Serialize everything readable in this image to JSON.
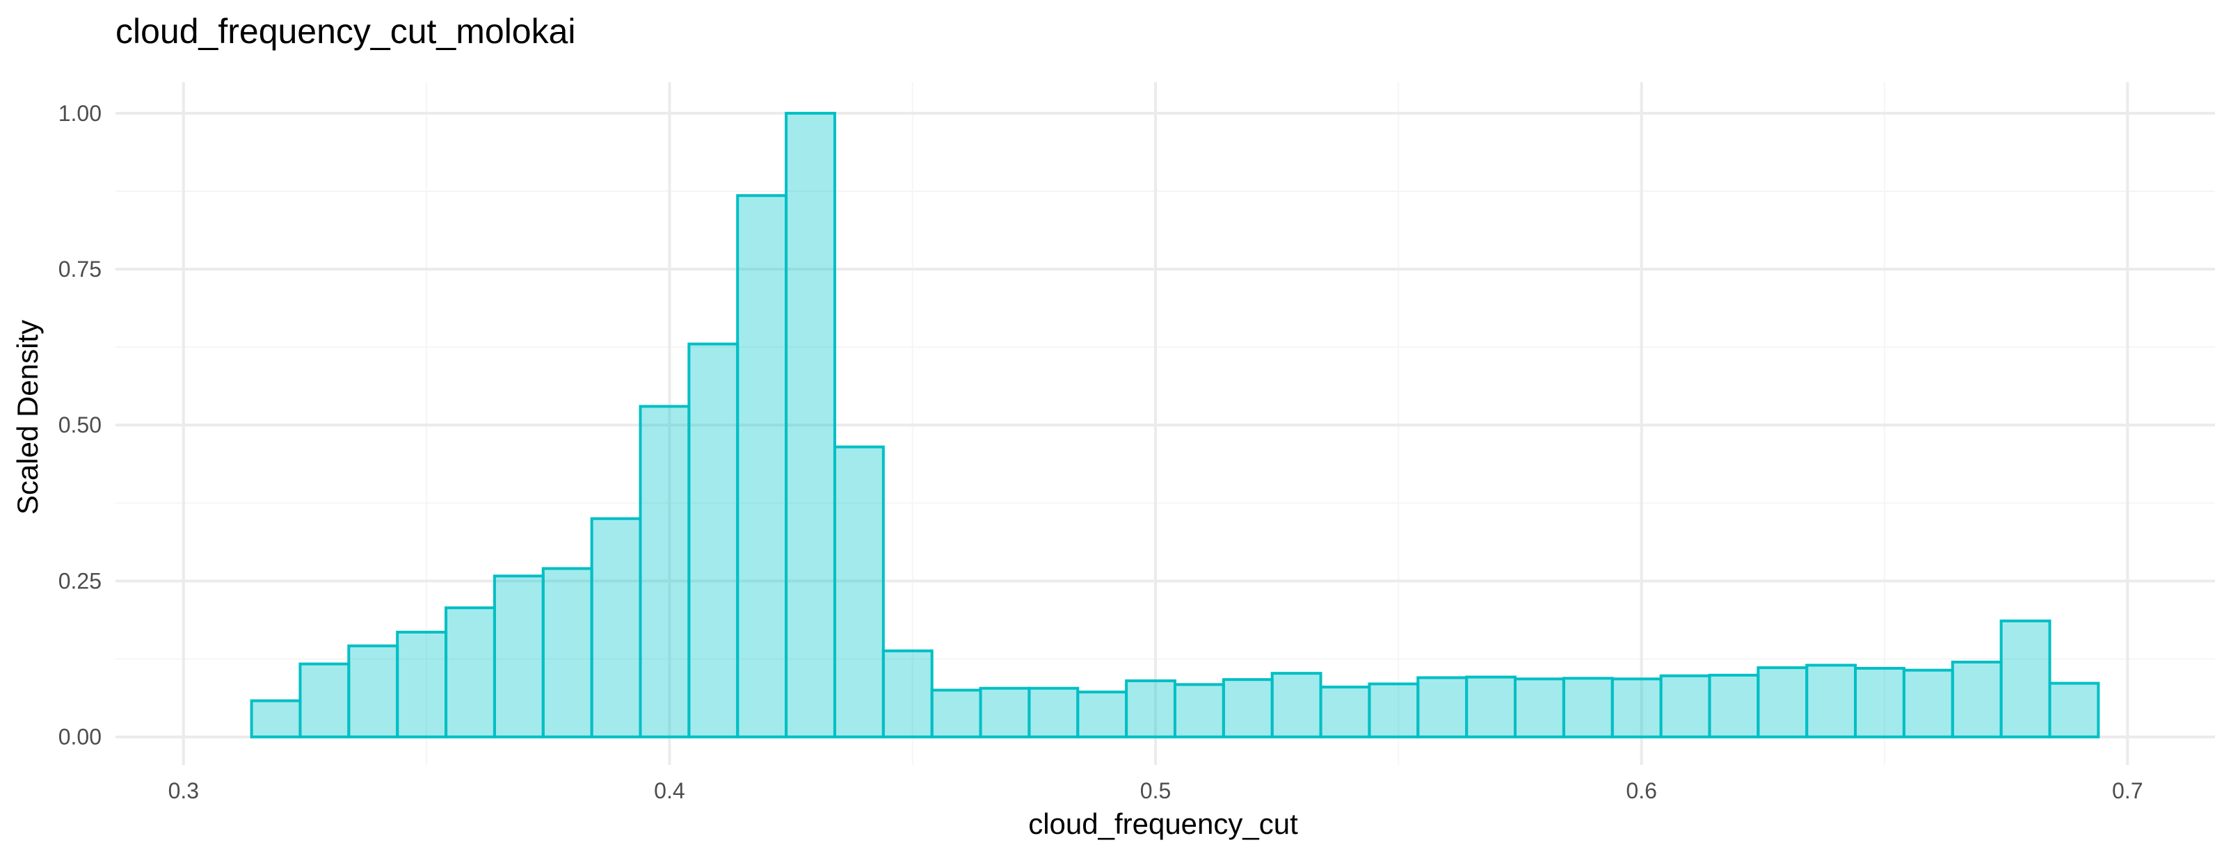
{
  "chart_data": {
    "type": "bar",
    "title": "cloud_frequency_cut_molokai",
    "xlabel": "cloud_frequency_cut",
    "ylabel": "Scaled Density",
    "xlim": [
      0.286,
      0.718
    ],
    "ylim": [
      -0.045,
      1.05
    ],
    "x_ticks": [
      0.3,
      0.4,
      0.5,
      0.6,
      0.7
    ],
    "x_tick_labels": [
      "0.3",
      "0.4",
      "0.5",
      "0.6",
      "0.7"
    ],
    "y_ticks": [
      0.0,
      0.25,
      0.5,
      0.75,
      1.0
    ],
    "y_tick_labels": [
      "0.00",
      "0.25",
      "0.50",
      "0.75",
      "1.00"
    ],
    "grid": true,
    "legend": "none",
    "bin_start": 0.314,
    "bin_width": 0.01,
    "values": [
      0.058,
      0.117,
      0.146,
      0.168,
      0.207,
      0.258,
      0.27,
      0.35,
      0.53,
      0.63,
      0.868,
      1.0,
      0.465,
      0.138,
      0.075,
      0.078,
      0.078,
      0.072,
      0.09,
      0.084,
      0.092,
      0.102,
      0.08,
      0.085,
      0.095,
      0.096,
      0.093,
      0.094,
      0.093,
      0.098,
      0.099,
      0.111,
      0.115,
      0.11,
      0.107,
      0.12,
      0.186,
      0.086
    ],
    "colors": {
      "fill": "#00C5CD",
      "fill_opacity": 0.36,
      "stroke": "#00BFC4",
      "grid_major": "#EBEBEB",
      "grid_minor": "#F5F5F5"
    }
  }
}
